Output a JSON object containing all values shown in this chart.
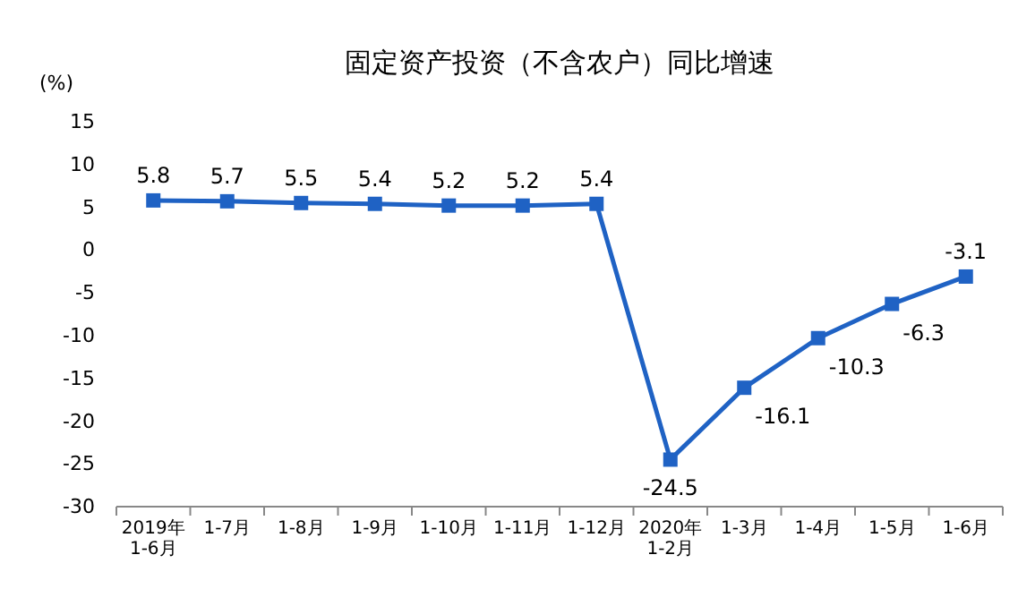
{
  "chart_data": {
    "type": "line",
    "title": "固定资产投资（不含农户）同比增速",
    "ylabel": "(%)",
    "categories": [
      "2019年\n1-6月",
      "1-7月",
      "1-8月",
      "1-9月",
      "1-10月",
      "1-11月",
      "1-12月",
      "2020年\n1-2月",
      "1-3月",
      "1-4月",
      "1-5月",
      "1-6月"
    ],
    "series": [
      {
        "color": "#1f62c4",
        "values": [
          5.8,
          5.7,
          5.5,
          5.4,
          5.2,
          5.2,
          5.4,
          -24.5,
          -16.1,
          -10.3,
          -6.3,
          -3.1
        ]
      }
    ],
    "ylim": [
      -30,
      15
    ],
    "yticks": [
      15,
      10,
      5,
      0,
      -5,
      -10,
      -15,
      -20,
      -25,
      -30
    ],
    "grid": false,
    "marker": "square",
    "line_style": "solid",
    "data_labels": true
  }
}
